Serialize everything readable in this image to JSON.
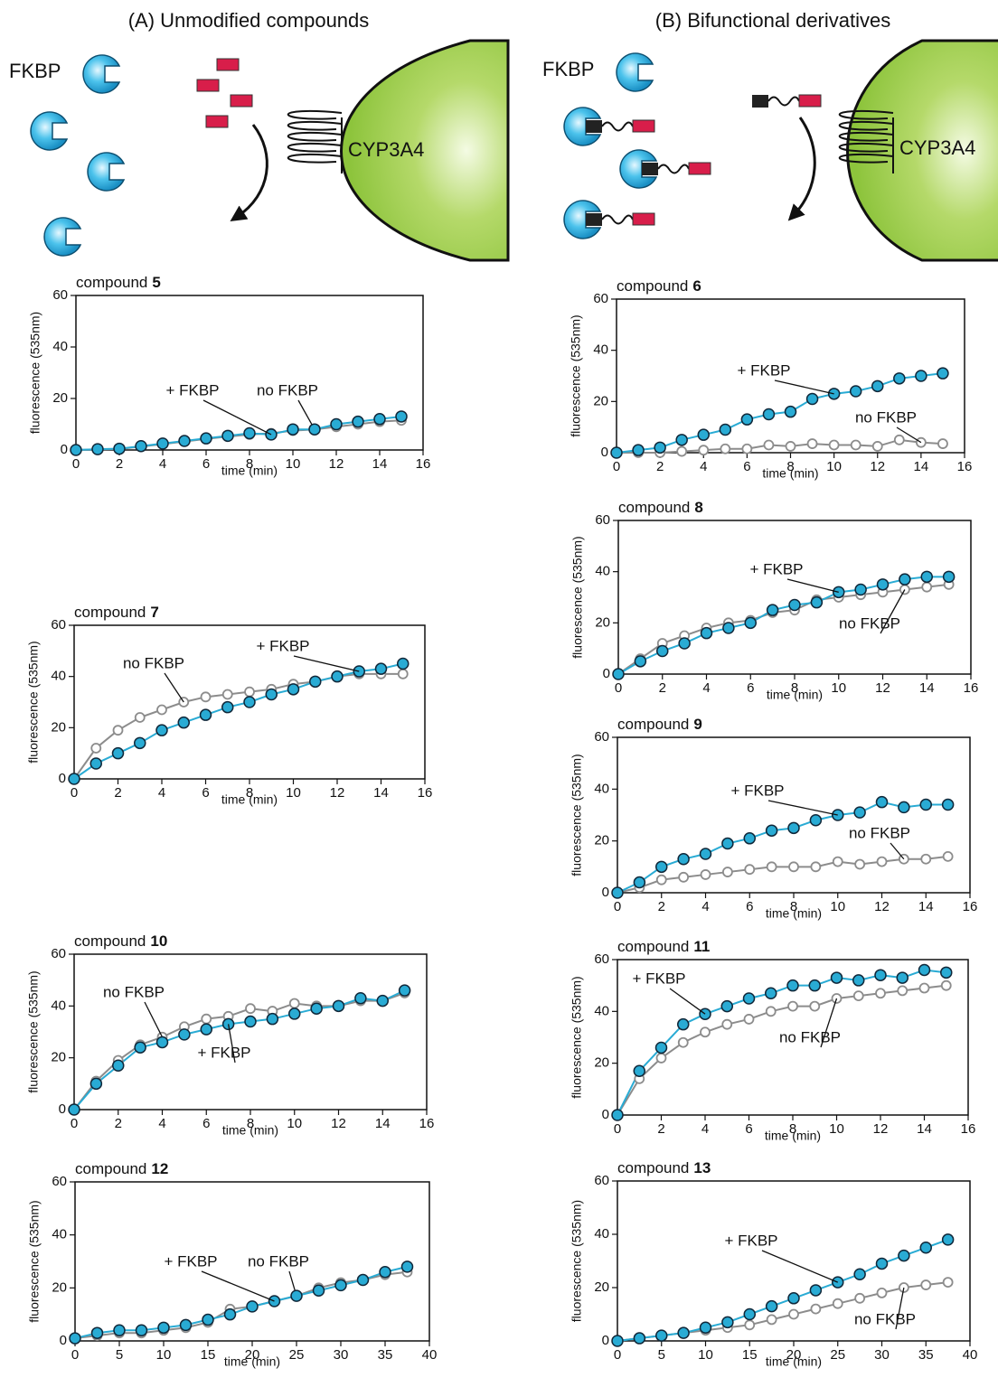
{
  "panels": [
    {
      "title": "(A) Unmodified compounds",
      "protein": "FKBP",
      "enzyme": "CYP3A4"
    },
    {
      "title": "(B) Bifunctional derivatives",
      "protein": "FKBP",
      "enzyme": "CYP3A4"
    }
  ],
  "chart_data": [
    {
      "type": "line",
      "title": [
        "compound",
        "5"
      ],
      "x_label": "time (min)",
      "y_label": "fluorescence (535nm)",
      "xlim": [
        0,
        16
      ],
      "ylim": [
        0,
        60
      ],
      "xticks": [
        0,
        2,
        4,
        6,
        8,
        10,
        12,
        14,
        16
      ],
      "yticks": [
        0,
        20,
        40,
        60
      ],
      "x": [
        0,
        1,
        2,
        3,
        4,
        5,
        6,
        7,
        8,
        9,
        10,
        11,
        12,
        13,
        14,
        15
      ],
      "series": [
        {
          "name": "no FKBP",
          "color": "#8c8c8c",
          "values": [
            0,
            0.2,
            0.4,
            1.3,
            2.3,
            3.3,
            4.3,
            5.2,
            6,
            6.5,
            7.5,
            8,
            9,
            10,
            11,
            11.5
          ]
        },
        {
          "name": "+ FKBP",
          "color": "#29abd4",
          "values": [
            0,
            0.3,
            0.5,
            1.5,
            2.5,
            3.5,
            4.5,
            5.5,
            6.5,
            6,
            8,
            8,
            10,
            11,
            12,
            13
          ]
        }
      ]
    },
    {
      "type": "line",
      "title": [
        "compound",
        "6"
      ],
      "x_label": "time (min)",
      "y_label": "fluorescence (535nm)",
      "xlim": [
        0,
        16
      ],
      "ylim": [
        0,
        60
      ],
      "xticks": [
        0,
        2,
        4,
        6,
        8,
        10,
        12,
        14,
        16
      ],
      "yticks": [
        0,
        20,
        40,
        60
      ],
      "x": [
        0,
        1,
        2,
        3,
        4,
        5,
        6,
        7,
        8,
        9,
        10,
        11,
        12,
        13,
        14,
        15
      ],
      "series": [
        {
          "name": "no FKBP",
          "color": "#8c8c8c",
          "values": [
            0,
            0,
            0,
            0.5,
            1,
            1.5,
            1.5,
            3,
            2.5,
            3.5,
            3,
            3,
            2.5,
            5,
            4,
            3.5
          ]
        },
        {
          "name": "+ FKBP",
          "color": "#29abd4",
          "values": [
            0,
            1,
            2,
            5,
            7,
            9,
            13,
            15,
            16,
            21,
            23,
            24,
            26,
            29,
            30,
            31
          ]
        }
      ]
    },
    {
      "type": "line",
      "title": [
        "compound",
        "7"
      ],
      "x_label": "time (min)",
      "y_label": "fluorescence (535nm)",
      "xlim": [
        0,
        16
      ],
      "ylim": [
        0,
        60
      ],
      "xticks": [
        0,
        2,
        4,
        6,
        8,
        10,
        12,
        14,
        16
      ],
      "yticks": [
        0,
        20,
        40,
        60
      ],
      "x": [
        0,
        1,
        2,
        3,
        4,
        5,
        6,
        7,
        8,
        9,
        10,
        11,
        12,
        13,
        14,
        15
      ],
      "series": [
        {
          "name": "no FKBP",
          "color": "#8c8c8c",
          "values": [
            0,
            12,
            19,
            24,
            27,
            30,
            32,
            33,
            34,
            35,
            37,
            38,
            40,
            41,
            41,
            41
          ]
        },
        {
          "name": "+ FKBP",
          "color": "#29abd4",
          "values": [
            0,
            6,
            10,
            14,
            19,
            22,
            25,
            28,
            30,
            33,
            35,
            38,
            40,
            42,
            43,
            45
          ]
        }
      ]
    },
    {
      "type": "line",
      "title": [
        "compound",
        "8"
      ],
      "x_label": "time (min)",
      "y_label": "fluorescence (535nm)",
      "xlim": [
        0,
        16
      ],
      "ylim": [
        0,
        60
      ],
      "xticks": [
        0,
        2,
        4,
        6,
        8,
        10,
        12,
        14,
        16
      ],
      "yticks": [
        0,
        20,
        40,
        60
      ],
      "x": [
        0,
        1,
        2,
        3,
        4,
        5,
        6,
        7,
        8,
        9,
        10,
        11,
        12,
        13,
        14,
        15
      ],
      "series": [
        {
          "name": "no FKBP",
          "color": "#8c8c8c",
          "values": [
            0,
            6,
            12,
            15,
            18,
            20,
            21,
            24,
            25,
            29,
            30,
            31,
            32,
            33,
            34,
            35
          ]
        },
        {
          "name": "+ FKBP",
          "color": "#29abd4",
          "values": [
            0,
            5,
            9,
            12,
            16,
            18,
            20,
            25,
            27,
            28,
            32,
            33,
            35,
            37,
            38,
            38
          ]
        }
      ]
    },
    {
      "type": "line",
      "title": [
        "compound",
        "9"
      ],
      "x_label": "time (min)",
      "y_label": "fluorescence (535nm)",
      "xlim": [
        0,
        16
      ],
      "ylim": [
        0,
        60
      ],
      "xticks": [
        0,
        2,
        4,
        6,
        8,
        10,
        12,
        14,
        16
      ],
      "yticks": [
        0,
        20,
        40,
        60
      ],
      "x": [
        0,
        1,
        2,
        3,
        4,
        5,
        6,
        7,
        8,
        9,
        10,
        11,
        12,
        13,
        14,
        15
      ],
      "series": [
        {
          "name": "no FKBP",
          "color": "#8c8c8c",
          "values": [
            0,
            2,
            5,
            6,
            7,
            8,
            9,
            10,
            10,
            10,
            12,
            11,
            12,
            13,
            13,
            14
          ]
        },
        {
          "name": "+ FKBP",
          "color": "#29abd4",
          "values": [
            0,
            4,
            10,
            13,
            15,
            19,
            21,
            24,
            25,
            28,
            30,
            31,
            35,
            33,
            34,
            34
          ]
        }
      ]
    },
    {
      "type": "line",
      "title": [
        "compound",
        "10"
      ],
      "x_label": "time (min)",
      "y_label": "fluorescence (535nm)",
      "xlim": [
        0,
        16
      ],
      "ylim": [
        0,
        60
      ],
      "xticks": [
        0,
        2,
        4,
        6,
        8,
        10,
        12,
        14,
        16
      ],
      "yticks": [
        0,
        20,
        40,
        60
      ],
      "x": [
        0,
        1,
        2,
        3,
        4,
        5,
        6,
        7,
        8,
        9,
        10,
        11,
        12,
        13,
        14,
        15
      ],
      "series": [
        {
          "name": "no FKBP",
          "color": "#8c8c8c",
          "values": [
            0,
            11,
            19,
            25,
            28,
            32,
            35,
            36,
            39,
            38,
            41,
            40,
            40,
            42,
            42,
            45
          ]
        },
        {
          "name": "+ FKBP",
          "color": "#29abd4",
          "values": [
            0,
            10,
            17,
            24,
            26,
            29,
            31,
            33,
            34,
            35,
            37,
            39,
            40,
            43,
            42,
            46
          ]
        }
      ]
    },
    {
      "type": "line",
      "title": [
        "compound",
        "11"
      ],
      "x_label": "time (min)",
      "y_label": "fluorescence (535nm)",
      "xlim": [
        0,
        16
      ],
      "ylim": [
        0,
        60
      ],
      "xticks": [
        0,
        2,
        4,
        6,
        8,
        10,
        12,
        14,
        16
      ],
      "yticks": [
        0,
        20,
        40,
        60
      ],
      "x": [
        0,
        1,
        2,
        3,
        4,
        5,
        6,
        7,
        8,
        9,
        10,
        11,
        12,
        13,
        14,
        15
      ],
      "series": [
        {
          "name": "no FKBP",
          "color": "#8c8c8c",
          "values": [
            0,
            14,
            22,
            28,
            32,
            35,
            37,
            40,
            42,
            42,
            45,
            46,
            47,
            48,
            49,
            50
          ]
        },
        {
          "name": "+ FKBP",
          "color": "#29abd4",
          "values": [
            0,
            17,
            26,
            35,
            39,
            42,
            45,
            47,
            50,
            50,
            53,
            52,
            54,
            53,
            56,
            55
          ]
        }
      ]
    },
    {
      "type": "line",
      "title": [
        "compound",
        "12"
      ],
      "x_label": "time (min)",
      "y_label": "fluorescence (535nm)",
      "xlim": [
        0,
        40
      ],
      "ylim": [
        0,
        60
      ],
      "xticks": [
        0,
        5,
        10,
        15,
        20,
        25,
        30,
        35,
        40
      ],
      "yticks": [
        0,
        20,
        40,
        60
      ],
      "x": [
        0,
        2.5,
        5,
        7.5,
        10,
        12.5,
        15,
        17.5,
        20,
        22.5,
        25,
        27.5,
        30,
        32.5,
        35,
        37.5
      ],
      "series": [
        {
          "name": "no FKBP",
          "color": "#8c8c8c",
          "values": [
            1,
            2,
            3,
            3,
            4,
            5,
            7,
            12,
            13,
            15,
            17,
            20,
            22,
            23,
            25,
            26
          ]
        },
        {
          "name": "+ FKBP",
          "color": "#29abd4",
          "values": [
            1,
            3,
            4,
            4,
            5,
            6,
            8,
            10,
            13,
            15,
            17,
            19,
            21,
            23,
            26,
            28
          ]
        }
      ]
    },
    {
      "type": "line",
      "title": [
        "compound",
        "13"
      ],
      "x_label": "time (min)",
      "y_label": "fluorescence (535nm)",
      "xlim": [
        0,
        40
      ],
      "ylim": [
        0,
        60
      ],
      "xticks": [
        0,
        5,
        10,
        15,
        20,
        25,
        30,
        35,
        40
      ],
      "yticks": [
        0,
        20,
        40,
        60
      ],
      "x": [
        0,
        2.5,
        5,
        7.5,
        10,
        12.5,
        15,
        17.5,
        20,
        22.5,
        25,
        27.5,
        30,
        32.5,
        35,
        37.5
      ],
      "series": [
        {
          "name": "no FKBP",
          "color": "#8c8c8c",
          "values": [
            0,
            1,
            2,
            3,
            4,
            5,
            6,
            8,
            10,
            12,
            14,
            16,
            18,
            20,
            21,
            22
          ]
        },
        {
          "name": "+ FKBP",
          "color": "#29abd4",
          "values": [
            0,
            1,
            2,
            3,
            5,
            7,
            10,
            13,
            16,
            19,
            22,
            25,
            29,
            32,
            35,
            38
          ]
        }
      ]
    }
  ]
}
